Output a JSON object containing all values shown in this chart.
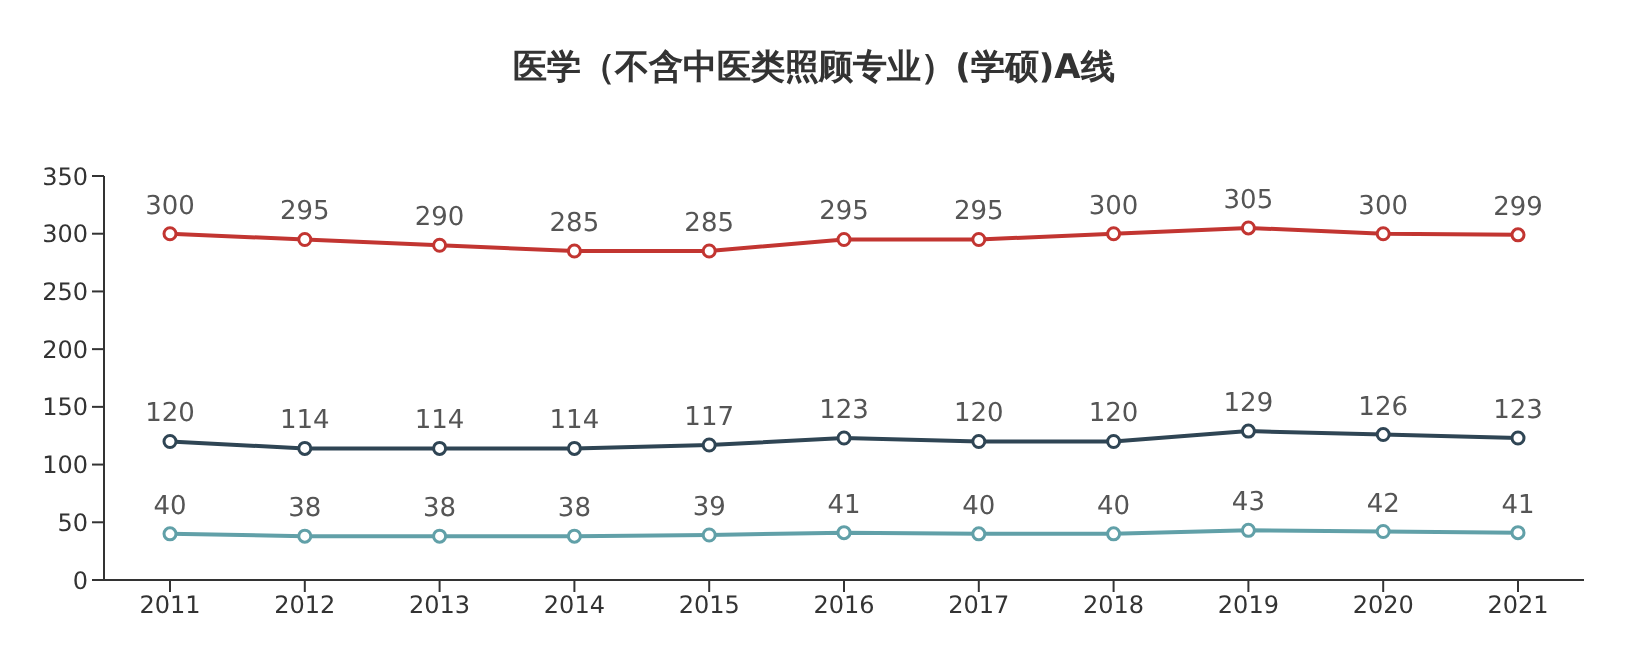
{
  "chart_data": {
    "type": "line",
    "title": "医学（不含中医类照顾专业）(学硕)A线",
    "categories": [
      "2011",
      "2012",
      "2013",
      "2014",
      "2015",
      "2016",
      "2017",
      "2018",
      "2019",
      "2020",
      "2021"
    ],
    "series": [
      {
        "color": "#c23531",
        "values": [
          300,
          295,
          290,
          285,
          285,
          295,
          295,
          300,
          305,
          300,
          299
        ]
      },
      {
        "color": "#2f4554",
        "values": [
          120,
          114,
          114,
          114,
          117,
          123,
          120,
          120,
          129,
          126,
          123
        ]
      },
      {
        "color": "#61a0a8",
        "values": [
          40,
          38,
          38,
          38,
          39,
          41,
          40,
          40,
          43,
          42,
          41
        ]
      }
    ],
    "ylim": [
      0,
      350
    ],
    "yticks": [
      0,
      50,
      100,
      150,
      200,
      250,
      300,
      350
    ],
    "marker": "circle",
    "line_style": "solid",
    "data_labels": true
  }
}
